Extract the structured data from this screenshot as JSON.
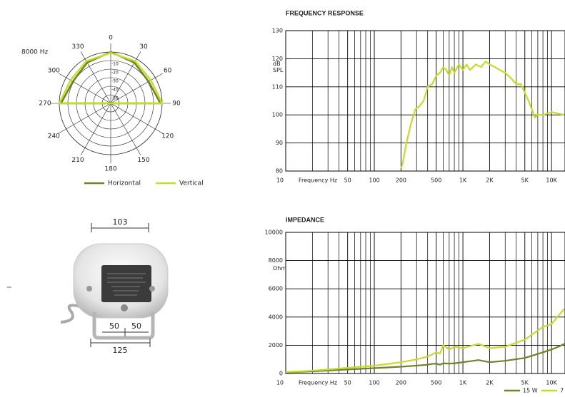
{
  "chart_data": [
    {
      "type": "polar",
      "title": "8000 Hz",
      "theta": [
        0,
        30,
        60,
        90,
        120,
        150,
        180,
        210,
        240,
        270,
        300,
        330
      ],
      "rlim": [
        -60,
        0
      ],
      "rticks": [
        -10,
        -20,
        -30,
        -40,
        -50
      ],
      "legend": "bottom",
      "series": [
        {
          "name": "Horizontal",
          "color": "#6b8424",
          "values": [
            0,
            -5,
            -9,
            -2,
            -60,
            -60,
            -60,
            -60,
            -60,
            -2,
            -9,
            -5
          ]
        },
        {
          "name": "Vertical",
          "color": "#c8da2a",
          "values": [
            -1,
            -3,
            -6,
            0,
            -60,
            -60,
            -60,
            -60,
            -60,
            0,
            -6,
            -3
          ]
        }
      ]
    },
    {
      "type": "line",
      "title": "FREQUENCY RESPONSE",
      "x_label": "Frequency Hz",
      "y_label": "dB SPL",
      "xscale": "log",
      "xlim": [
        10,
        14200
      ],
      "ylim": [
        80,
        130
      ],
      "grid": true,
      "xticks": [
        10,
        50,
        100,
        200,
        500,
        {
          "value": 1000,
          "label": "1K"
        },
        {
          "value": 2000,
          "label": "2K"
        },
        {
          "value": 5000,
          "label": "5K"
        },
        {
          "value": 10000,
          "label": "10K"
        }
      ],
      "x_minor_ticks": [
        20,
        30,
        40,
        60,
        70,
        80,
        90,
        300,
        400,
        600,
        700,
        800,
        900,
        3000,
        4000,
        6000,
        7000,
        8000,
        9000
      ],
      "yticks": [
        80,
        90,
        100,
        110,
        120,
        130
      ],
      "x": [
        200,
        210,
        230,
        260,
        290,
        320,
        360,
        400,
        450,
        500,
        550,
        600,
        650,
        700,
        750,
        800,
        900,
        1000,
        1100,
        1200,
        1400,
        1600,
        1800,
        2000,
        2300,
        2600,
        3000,
        3500,
        4000,
        4500,
        5000,
        5500,
        6000,
        6500,
        7000,
        8000,
        10000,
        14000
      ],
      "series": [
        {
          "color": "#c8da2a",
          "values": [
            81,
            83,
            90,
            97,
            102,
            103,
            105,
            110,
            111,
            114,
            115,
            117,
            116,
            114,
            117,
            115,
            118,
            116,
            118,
            116,
            118,
            117,
            119,
            118,
            117,
            116,
            115,
            113,
            111,
            111,
            108,
            105,
            102,
            99,
            100,
            100,
            101,
            100
          ]
        }
      ]
    },
    {
      "type": "line",
      "title": "IMPEDANCE",
      "x_label": "Frequency Hz",
      "y_label": "Ohm",
      "xscale": "log",
      "xlim": [
        10,
        14200
      ],
      "ylim": [
        0,
        10000
      ],
      "grid": true,
      "legend": "lower right",
      "xticks": [
        10,
        50,
        100,
        200,
        500,
        {
          "value": 1000,
          "label": "1K"
        },
        {
          "value": 2000,
          "label": "2K"
        },
        {
          "value": 5000,
          "label": "5K"
        },
        {
          "value": 10000,
          "label": "10K"
        }
      ],
      "x_minor_ticks": [
        20,
        30,
        40,
        60,
        70,
        80,
        90,
        300,
        400,
        600,
        700,
        800,
        900,
        3000,
        4000,
        6000,
        7000,
        8000,
        9000
      ],
      "yticks": [
        0,
        2000,
        4000,
        6000,
        8000,
        10000
      ],
      "x": [
        10,
        20,
        50,
        100,
        200,
        300,
        400,
        450,
        500,
        550,
        600,
        700,
        800,
        1000,
        1500,
        2000,
        3000,
        5000,
        8000,
        10000,
        12000,
        14000
      ],
      "series": [
        {
          "name": "15 W",
          "color": "#6b8424",
          "values": [
            80,
            150,
            280,
            380,
            480,
            560,
            620,
            680,
            700,
            620,
            720,
            700,
            720,
            800,
            950,
            800,
            900,
            1100,
            1500,
            1700,
            1900,
            2100
          ]
        },
        {
          "name": "7",
          "color": "#c8da2a",
          "values": [
            100,
            200,
            400,
            550,
            800,
            1000,
            1200,
            1350,
            1500,
            1400,
            2000,
            1700,
            1900,
            1800,
            2100,
            1800,
            1900,
            2400,
            3300,
            3500,
            4100,
            4600
          ]
        }
      ]
    }
  ],
  "product": {
    "dimensions": {
      "top": 103,
      "inner_left": 50,
      "inner_right": 50,
      "bottom": 125
    }
  }
}
